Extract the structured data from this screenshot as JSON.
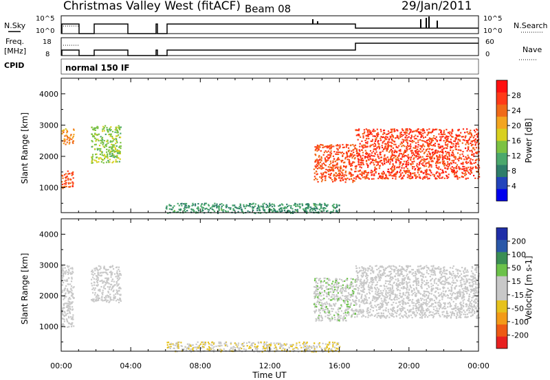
{
  "header": {
    "title": "Christmas Valley West (fitACF)",
    "beam": "Beam 08",
    "date": "29/Jan/2011"
  },
  "status_panels": {
    "nsky_label": "N.Sky",
    "nsky_ticks": [
      "10^5",
      "10^0"
    ],
    "nsearch_label": "N.Search",
    "nsearch_ticks": [
      "10^5",
      "10^0"
    ],
    "freq_label": "Freq.",
    "freq_unit": "[MHz]",
    "freq_ticks": [
      "18",
      "8"
    ],
    "nave_label": "Nave",
    "nave_ticks": [
      "60",
      "0"
    ],
    "cpid_label": "CPID",
    "cpid_value": "normal 150 IF"
  },
  "colors": {
    "power": [
      "#0000ee",
      "#2244bb",
      "#2e7d6a",
      "#4ba86c",
      "#7cc242",
      "#d8d020",
      "#f3a520",
      "#f06a18",
      "#ff3a18",
      "#ff1010"
    ],
    "velocity": [
      "#e82020",
      "#ee5a14",
      "#f39a18",
      "#e6c21e",
      "#c8c8c8",
      "#c8c8c8",
      "#6cc24a",
      "#3b8e54",
      "#2a58a8",
      "#1f2ea8"
    ]
  },
  "chart_data": [
    {
      "type": "heatmap",
      "title": "",
      "xlabel": "",
      "ylabel": "Slant Range [km]",
      "x_ticks": [],
      "xlim": [
        "00:00",
        "24:00"
      ],
      "y_ticks": [
        "1000",
        "2000",
        "3000",
        "4000"
      ],
      "ylim": [
        200,
        4500
      ],
      "colorbar": {
        "label": "Power [dB]",
        "ticks": [
          "28",
          "24",
          "20",
          "16",
          "12",
          "8",
          "4"
        ],
        "range": [
          0,
          32
        ]
      },
      "regions": [
        {
          "t": [
            0.0,
            0.7
          ],
          "r": [
            1000,
            1550
          ],
          "value": 26
        },
        {
          "t": [
            0.0,
            0.7
          ],
          "r": [
            2400,
            2900
          ],
          "value": 22
        },
        {
          "t": [
            1.7,
            3.4
          ],
          "r": [
            1800,
            3000
          ],
          "value": 15
        },
        {
          "t": [
            6.0,
            16.0
          ],
          "r": [
            200,
            520
          ],
          "value": 10
        },
        {
          "t": [
            14.5,
            16.9
          ],
          "r": [
            1200,
            2400
          ],
          "value": 26
        },
        {
          "t": [
            16.9,
            24.0
          ],
          "r": [
            1300,
            2900
          ],
          "value": 27
        }
      ]
    },
    {
      "type": "heatmap",
      "title": "",
      "xlabel": "Time UT",
      "ylabel": "Slant Range [km]",
      "x_ticks": [
        "00:00",
        "04:00",
        "08:00",
        "12:00",
        "16:00",
        "20:00",
        "00:00"
      ],
      "xlim": [
        "00:00",
        "24:00"
      ],
      "y_ticks": [
        "1000",
        "2000",
        "3000",
        "4000"
      ],
      "ylim": [
        200,
        4500
      ],
      "colorbar": {
        "label": "Velocity [m s-1]",
        "ticks": [
          "200",
          "100",
          "50",
          "15",
          "-15",
          "-50",
          "-100",
          "-200"
        ],
        "range": [
          -250,
          250
        ]
      },
      "regions": [
        {
          "t": [
            0.0,
            0.7
          ],
          "r": [
            1000,
            3000
          ],
          "value": 0
        },
        {
          "t": [
            1.7,
            3.4
          ],
          "r": [
            1800,
            3000
          ],
          "value": 0
        },
        {
          "t": [
            6.0,
            16.0
          ],
          "r": [
            200,
            520
          ],
          "value": -40
        },
        {
          "t": [
            14.5,
            16.9
          ],
          "r": [
            1200,
            2600
          ],
          "value": 30
        },
        {
          "t": [
            16.9,
            24.0
          ],
          "r": [
            1300,
            3000
          ],
          "value": 0
        }
      ]
    }
  ]
}
